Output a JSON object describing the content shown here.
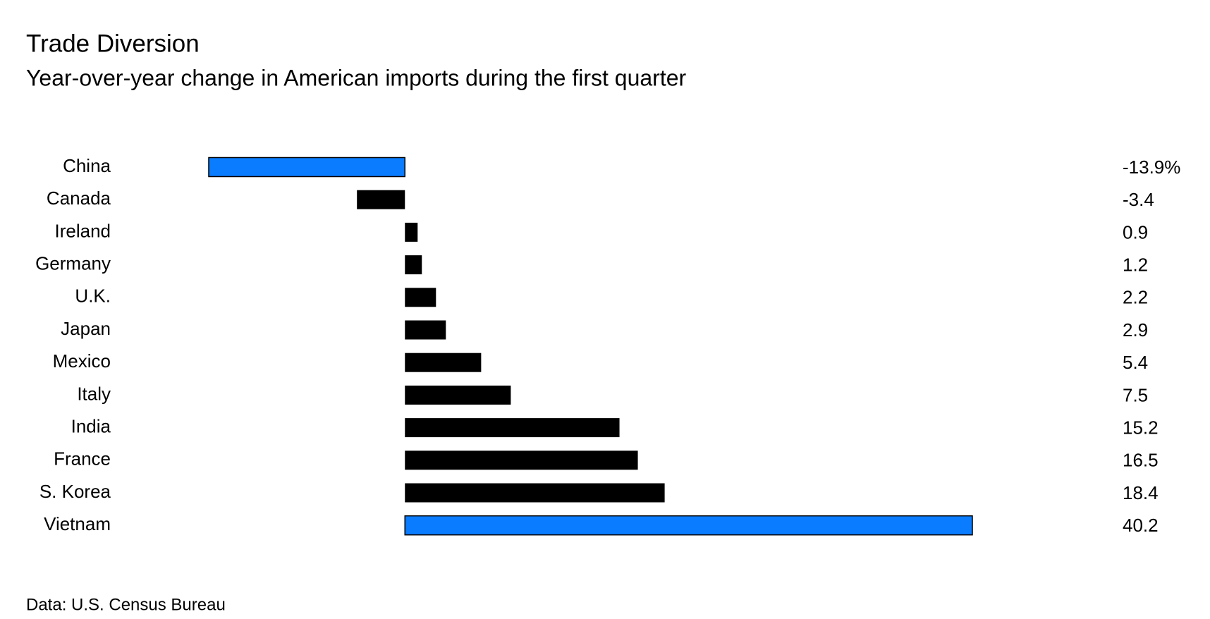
{
  "chart_data": {
    "type": "barh",
    "title": "Trade Diversion",
    "subtitle": "Year-over-year change in American imports during the first quarter",
    "source": "Data: U.S. Census Bureau",
    "categories": [
      "China",
      "Canada",
      "Ireland",
      "Germany",
      "U.K.",
      "Japan",
      "Mexico",
      "Italy",
      "India",
      "France",
      "S. Korea",
      "Vietnam"
    ],
    "values": [
      -13.9,
      -3.4,
      0.9,
      1.2,
      2.2,
      2.9,
      5.4,
      7.5,
      15.2,
      16.5,
      18.4,
      40.2
    ],
    "value_labels": [
      "-13.9%",
      "-3.4",
      "0.9",
      "1.2",
      "2.2",
      "2.9",
      "5.4",
      "7.5",
      "15.2",
      "16.5",
      "18.4",
      "40.2"
    ],
    "colors": [
      "#0a7cff",
      "#000000",
      "#000000",
      "#000000",
      "#000000",
      "#000000",
      "#000000",
      "#000000",
      "#000000",
      "#000000",
      "#000000",
      "#0a7cff"
    ],
    "xlim": [
      -13.9,
      40.2
    ]
  }
}
